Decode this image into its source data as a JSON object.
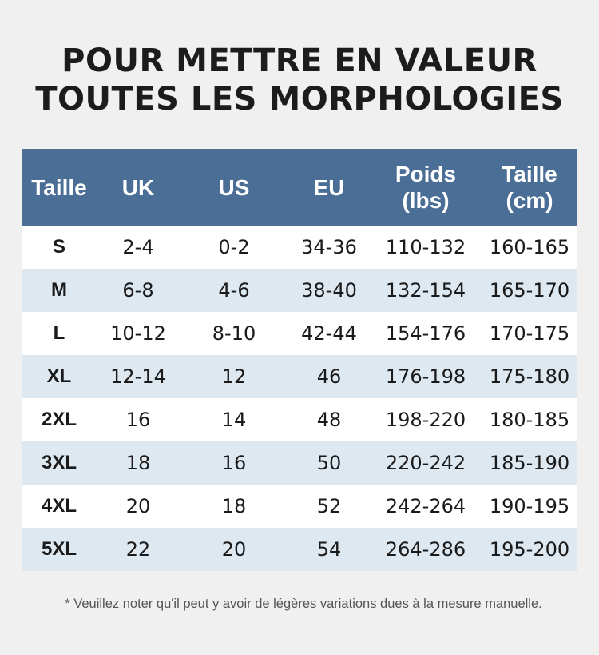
{
  "title": {
    "line1": "POUR METTRE EN VALEUR",
    "line2": "TOUTES LES MORPHOLOGIES"
  },
  "table": {
    "header": {
      "size": "Taille",
      "uk": "UK",
      "us": "US",
      "eu": "EU",
      "weight_1": "Poids",
      "weight_2": "(lbs)",
      "height_1": "Taille",
      "height_2": "(cm)"
    },
    "rows": [
      {
        "size": "S",
        "uk": "2-4",
        "us": "0-2",
        "eu": "34-36",
        "weight": "110-132",
        "height": "160-165"
      },
      {
        "size": "M",
        "uk": "6-8",
        "us": "4-6",
        "eu": "38-40",
        "weight": "132-154",
        "height": "165-170"
      },
      {
        "size": "L",
        "uk": "10-12",
        "us": "8-10",
        "eu": "42-44",
        "weight": "154-176",
        "height": "170-175"
      },
      {
        "size": "XL",
        "uk": "12-14",
        "us": "12",
        "eu": "46",
        "weight": "176-198",
        "height": "175-180"
      },
      {
        "size": "2XL",
        "uk": "16",
        "us": "14",
        "eu": "48",
        "weight": "198-220",
        "height": "180-185"
      },
      {
        "size": "3XL",
        "uk": "18",
        "us": "16",
        "eu": "50",
        "weight": "220-242",
        "height": "185-190"
      },
      {
        "size": "4XL",
        "uk": "20",
        "us": "18",
        "eu": "52",
        "weight": "242-264",
        "height": "190-195"
      },
      {
        "size": "5XL",
        "uk": "22",
        "us": "20",
        "eu": "54",
        "weight": "264-286",
        "height": "195-200"
      }
    ]
  },
  "note": "* Veuillez noter qu'il peut y avoir de légères variations dues à la mesure manuelle.",
  "colors": {
    "header_bg": "#4b6e97",
    "row_alt_bg": "#dde8f1",
    "page_bg": "#f0f0f0"
  }
}
